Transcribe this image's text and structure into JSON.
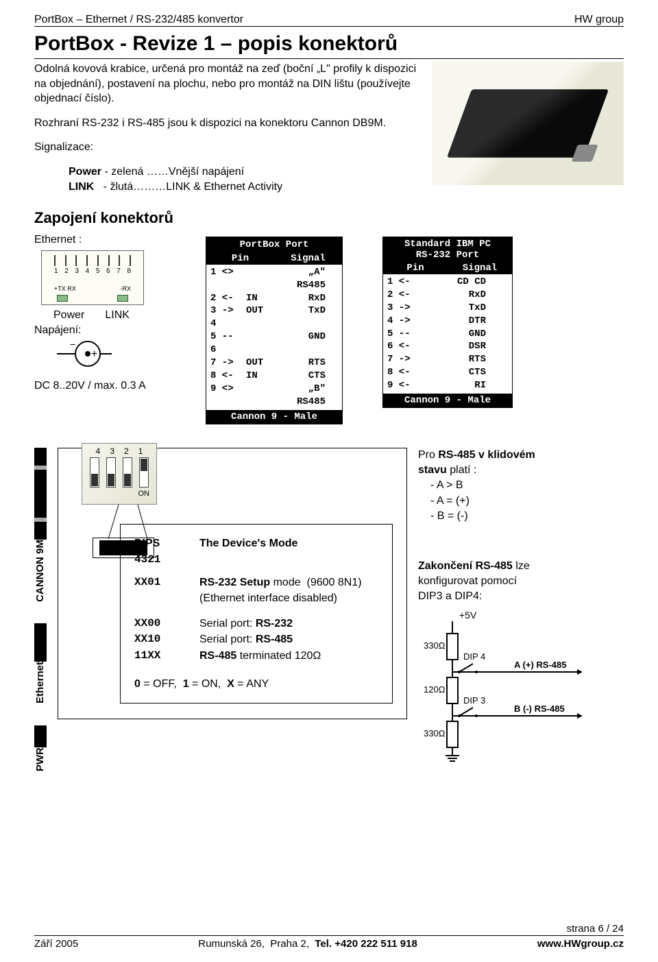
{
  "header": {
    "left": "PortBox – Ethernet / RS-232/485 konvertor",
    "right": "HW group"
  },
  "title": "PortBox - Revize 1 – popis konektorů",
  "intro_p1": "Odolná kovová krabice, určená pro montáž na zeď (boční „L\" profily k dispozici na objednání), postavení na plochu, nebo pro montáž na DIN lištu (používejte objednací číslo).",
  "intro_p2": "Rozhraní RS-232 i RS-485 jsou k dispozici na konektoru Cannon DB9M.",
  "signal_title": "Signalizace:",
  "signal_power": "Power - zelená ……Vnější napájení",
  "signal_link": "LINK   - žlutá………LINK & Ethernet Activity",
  "zapojeni": "Zapojení konektorů",
  "ethernet_label": "Ethernet :",
  "power_label": "Power",
  "link_label": "LINK",
  "napajeni_label": "Napájení:",
  "dc_note": "DC 8..20V / max. 0.3 A",
  "portbox_table": {
    "title": "PortBox Port",
    "col1": "Pin",
    "col2": "Signal",
    "rows": [
      {
        "pin": "1 <>",
        "dir": "",
        "sig": "„A\" RS485"
      },
      {
        "pin": "2 <-",
        "dir": "IN",
        "sig": "RxD"
      },
      {
        "pin": "3 ->",
        "dir": "OUT",
        "sig": "TxD"
      },
      {
        "pin": "4",
        "dir": "",
        "sig": ""
      },
      {
        "pin": "5 --",
        "dir": "",
        "sig": "GND"
      },
      {
        "pin": "6",
        "dir": "",
        "sig": ""
      },
      {
        "pin": "7 ->",
        "dir": "OUT",
        "sig": "RTS"
      },
      {
        "pin": "8 <-",
        "dir": "IN",
        "sig": "CTS"
      },
      {
        "pin": "9 <>",
        "dir": "",
        "sig": "„B\" RS485"
      }
    ],
    "footer": "Cannon 9 - Male"
  },
  "ibm_table": {
    "title_l1": "Standard IBM PC",
    "title_l2": "RS-232 Port",
    "col1": "Pin",
    "col2": "Signal",
    "rows": [
      {
        "pin": "1 <-",
        "sig": "CD CD"
      },
      {
        "pin": "2 <-",
        "sig": "RxD"
      },
      {
        "pin": "3 ->",
        "sig": "TxD"
      },
      {
        "pin": "4 ->",
        "sig": "DTR"
      },
      {
        "pin": "5 --",
        "sig": "GND"
      },
      {
        "pin": "6 <-",
        "sig": "DSR"
      },
      {
        "pin": "7 ->",
        "sig": "RTS"
      },
      {
        "pin": "8 <-",
        "sig": "CTS"
      },
      {
        "pin": "9 <-",
        "sig": "RI"
      }
    ],
    "footer": "Cannon 9 - Male"
  },
  "dip_nums": [
    "4",
    "3",
    "2",
    "1"
  ],
  "dip_on": "ON",
  "side": {
    "cannon": "CANNON 9M",
    "ethernet": "Ethernet",
    "pwr": "PWR"
  },
  "mode": {
    "head_dips": "DIPS",
    "head_dips_sub": "4321",
    "head_mode": "The Device's Mode",
    "r1_k": "XX01",
    "r1_v": "RS-232 Setup mode  (9600 8N1)",
    "r1_v2": "(Ethernet interface disabled)",
    "r2_k": "XX00",
    "r2_v": "Serial port: RS-232",
    "r3_k": "XX10",
    "r3_v": "Serial port: RS-485",
    "r4_k": "11XX",
    "r4_v": "RS-485 terminated 120Ω",
    "foot": "0 = OFF,  1 = ON,  X = ANY"
  },
  "rs485": {
    "l1a": "Pro ",
    "l1b": "RS-485 v klidovém",
    "l2a": "stavu ",
    "l2b": "platí :",
    "a": "- A > B",
    "b": "- A = (+)",
    "c": "- B = (-)",
    "term1a": "Zakončení RS-485 ",
    "term1b": "lze",
    "term2": "konfigurovat pomocí",
    "term3": "DIP3 a DIP4:",
    "svg": {
      "v5": "+5V",
      "r1": "330Ω",
      "r2": "120Ω",
      "r3": "330Ω",
      "dip4": "DIP 4",
      "dip3": "DIP 3",
      "aline": "A (+) RS-485",
      "bline": "B (-) RS-485",
      "gnd": "⏚"
    }
  },
  "page_num": "strana 6 / 24",
  "footer": {
    "date": "Září 2005",
    "addr": "Rumunská 26,  Praha 2,  Tel. +420 222 511 918",
    "url": "www.HWgroup.cz"
  }
}
